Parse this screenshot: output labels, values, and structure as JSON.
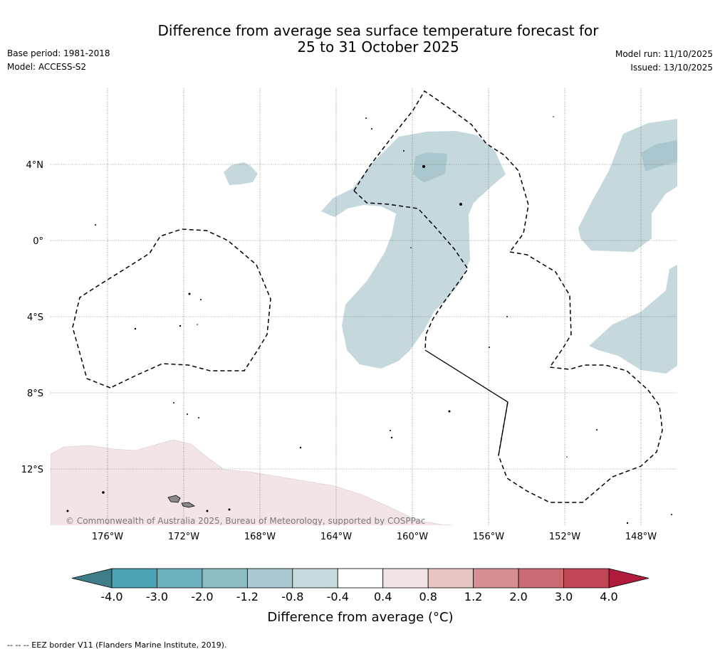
{
  "title": {
    "line1": "Difference from average sea surface temperature forecast for",
    "line2": "25 to 31 October 2025"
  },
  "meta": {
    "base_period": "Base period: 1981-2018",
    "model": "Model: ACCESS-S2",
    "model_run": "Model run: 11/10/2025",
    "issued": "Issued: 13/10/2025"
  },
  "map": {
    "lon_range": [
      -179,
      -146
    ],
    "lat_range": [
      -15,
      8
    ],
    "lon_ticks": [
      {
        "value": -176,
        "label": "176°W"
      },
      {
        "value": -172,
        "label": "172°W"
      },
      {
        "value": -168,
        "label": "168°W"
      },
      {
        "value": -164,
        "label": "164°W"
      },
      {
        "value": -160,
        "label": "160°W"
      },
      {
        "value": -156,
        "label": "156°W"
      },
      {
        "value": -152,
        "label": "152°W"
      },
      {
        "value": -148,
        "label": "148°W"
      }
    ],
    "lat_ticks": [
      {
        "value": 4,
        "label": "4°N"
      },
      {
        "value": 0,
        "label": "0°"
      },
      {
        "value": -4,
        "label": "4°S"
      },
      {
        "value": -8,
        "label": "8°S"
      },
      {
        "value": -12,
        "label": "12°S"
      }
    ],
    "copyright": "© Commonwealth of Australia 2025, Bureau of Meteorology, supported by COSPPac",
    "colors": {
      "cool_light": "#c5d9dd",
      "cool_medium": "#a9c7cc",
      "warm_light": "#f3e4e5",
      "land": "#8a8a8a",
      "grid": "#444444",
      "eez": "#000000"
    }
  },
  "colorbar": {
    "ticks": [
      "-4.0",
      "-3.0",
      "-2.0",
      "-1.2",
      "-0.8",
      "-0.4",
      "0.4",
      "0.8",
      "1.2",
      "2.0",
      "3.0",
      "4.0"
    ],
    "colors": [
      "#4aa3b3",
      "#6db0bd",
      "#8dbbc2",
      "#aac8cd",
      "#c6d9dd",
      "#ffffff",
      "#f3e4e5",
      "#e6c5c4",
      "#d58f95",
      "#cb6a73",
      "#c14656"
    ],
    "extend_low_color": "#3f7d87",
    "extend_high_color": "#b01b3c",
    "label": "Difference from average (°C)"
  },
  "footnote": "--  --  -- EEZ border V11 (Flanders Marine Institute, 2019)."
}
